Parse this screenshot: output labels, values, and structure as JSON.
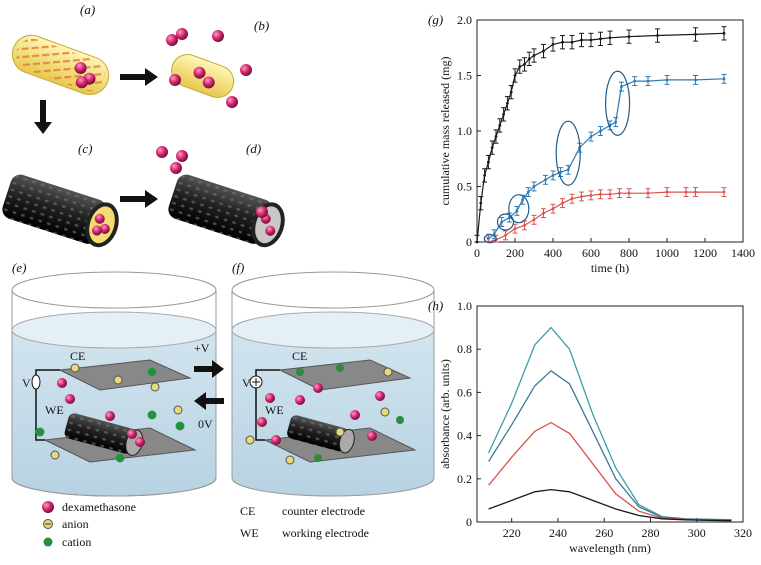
{
  "panels": {
    "a": "(a)",
    "b": "(b)",
    "c": "(c)",
    "d": "(d)",
    "e": "(e)",
    "f": "(f)",
    "g": "(g)",
    "h": "(h)"
  },
  "electrodes": {
    "ce": "CE",
    "we": "WE",
    "v": "V",
    "plus_v": "+V",
    "zero_v": "0V"
  },
  "legend": {
    "dexamethasone": "dexamethasone",
    "anion": "anion",
    "cation": "cation",
    "ce_abbr": "CE",
    "ce_desc": "counter electrode",
    "we_abbr": "WE",
    "we_desc": "working electrode"
  },
  "colors": {
    "black": "#1a1a1a",
    "blue": "#2d7ab5",
    "red": "#d9534f",
    "teal": "#3a9ea5",
    "drug": "#d4286e",
    "gel": "#f4e27a",
    "water": "#cfe3ee"
  },
  "chart_data": [
    {
      "type": "line",
      "xlabel": "time (h)",
      "ylabel": "cumulative mass released (mg)",
      "xlim": [
        0,
        1400
      ],
      "ylim": [
        0,
        2.0
      ],
      "xticks": [
        "0",
        "200",
        "400",
        "600",
        "800",
        "1000",
        "1200",
        "1400"
      ],
      "yticks": [
        "0",
        "0.5",
        "1.0",
        "1.5",
        "2.0"
      ],
      "series": [
        {
          "color": "#1a1a1a",
          "err": 0.06,
          "x": [
            0,
            20,
            40,
            60,
            80,
            100,
            120,
            140,
            160,
            180,
            200,
            225,
            250,
            275,
            300,
            350,
            400,
            450,
            500,
            550,
            600,
            650,
            700,
            800,
            950,
            1150,
            1300
          ],
          "y": [
            0,
            0.35,
            0.6,
            0.72,
            0.85,
            0.95,
            1.05,
            1.15,
            1.25,
            1.35,
            1.5,
            1.58,
            1.6,
            1.65,
            1.68,
            1.72,
            1.78,
            1.8,
            1.8,
            1.82,
            1.82,
            1.83,
            1.84,
            1.85,
            1.86,
            1.87,
            1.88
          ]
        },
        {
          "color": "#2d7ab5",
          "err": 0.04,
          "x": [
            60,
            90,
            130,
            170,
            210,
            240,
            270,
            300,
            360,
            400,
            440,
            480,
            540,
            600,
            650,
            700,
            730,
            760,
            830,
            900,
            1000,
            1150,
            1300
          ],
          "y": [
            0.03,
            0.07,
            0.18,
            0.22,
            0.28,
            0.38,
            0.45,
            0.5,
            0.56,
            0.6,
            0.63,
            0.65,
            0.85,
            0.95,
            1.0,
            1.05,
            1.08,
            1.4,
            1.45,
            1.45,
            1.46,
            1.46,
            1.47
          ]
        },
        {
          "color": "#d9534f",
          "err": 0.04,
          "x": [
            60,
            100,
            150,
            200,
            250,
            300,
            350,
            400,
            450,
            500,
            550,
            600,
            650,
            700,
            750,
            800,
            900,
            1000,
            1100,
            1150,
            1300
          ],
          "y": [
            0,
            0.02,
            0.06,
            0.12,
            0.15,
            0.2,
            0.26,
            0.3,
            0.35,
            0.39,
            0.41,
            0.42,
            0.43,
            0.43,
            0.44,
            0.44,
            0.44,
            0.45,
            0.45,
            0.45,
            0.45
          ]
        }
      ],
      "highlights": [
        {
          "x": 70,
          "y": 0.03
        },
        {
          "x": 150,
          "y": 0.18
        },
        {
          "x": 220,
          "y": 0.3
        },
        {
          "x": 480,
          "y": 0.8
        },
        {
          "x": 740,
          "y": 1.25
        }
      ]
    },
    {
      "type": "line",
      "xlabel": "wavelength (nm)",
      "ylabel": "absorbance (arb. units)",
      "xlim": [
        205,
        320
      ],
      "ylim": [
        0,
        1.0
      ],
      "xticks": [
        "220",
        "240",
        "260",
        "280",
        "300",
        "320"
      ],
      "yticks": [
        "0",
        "0.2",
        "0.4",
        "0.6",
        "0.8",
        "1.0"
      ],
      "series": [
        {
          "color": "#3a9ea5",
          "x": [
            210,
            220,
            230,
            237,
            245,
            255,
            265,
            275,
            285,
            295,
            305,
            315
          ],
          "y": [
            0.32,
            0.55,
            0.82,
            0.9,
            0.8,
            0.5,
            0.25,
            0.08,
            0.025,
            0.015,
            0.012,
            0.01
          ]
        },
        {
          "color": "#3a7a95",
          "x": [
            210,
            220,
            230,
            237,
            245,
            255,
            265,
            275,
            285,
            295,
            305,
            315
          ],
          "y": [
            0.28,
            0.45,
            0.63,
            0.7,
            0.64,
            0.42,
            0.2,
            0.07,
            0.022,
            0.014,
            0.012,
            0.01
          ]
        },
        {
          "color": "#d9534f",
          "x": [
            210,
            220,
            230,
            237,
            245,
            255,
            265,
            275,
            285,
            295,
            305,
            315
          ],
          "y": [
            0.17,
            0.3,
            0.42,
            0.46,
            0.41,
            0.27,
            0.13,
            0.05,
            0.018,
            0.012,
            0.01,
            0.008
          ]
        },
        {
          "color": "#1a1a1a",
          "x": [
            210,
            220,
            230,
            237,
            245,
            255,
            265,
            275,
            285,
            295,
            305,
            315
          ],
          "y": [
            0.06,
            0.1,
            0.14,
            0.15,
            0.14,
            0.1,
            0.06,
            0.03,
            0.015,
            0.01,
            0.008,
            0.006
          ]
        }
      ]
    }
  ]
}
